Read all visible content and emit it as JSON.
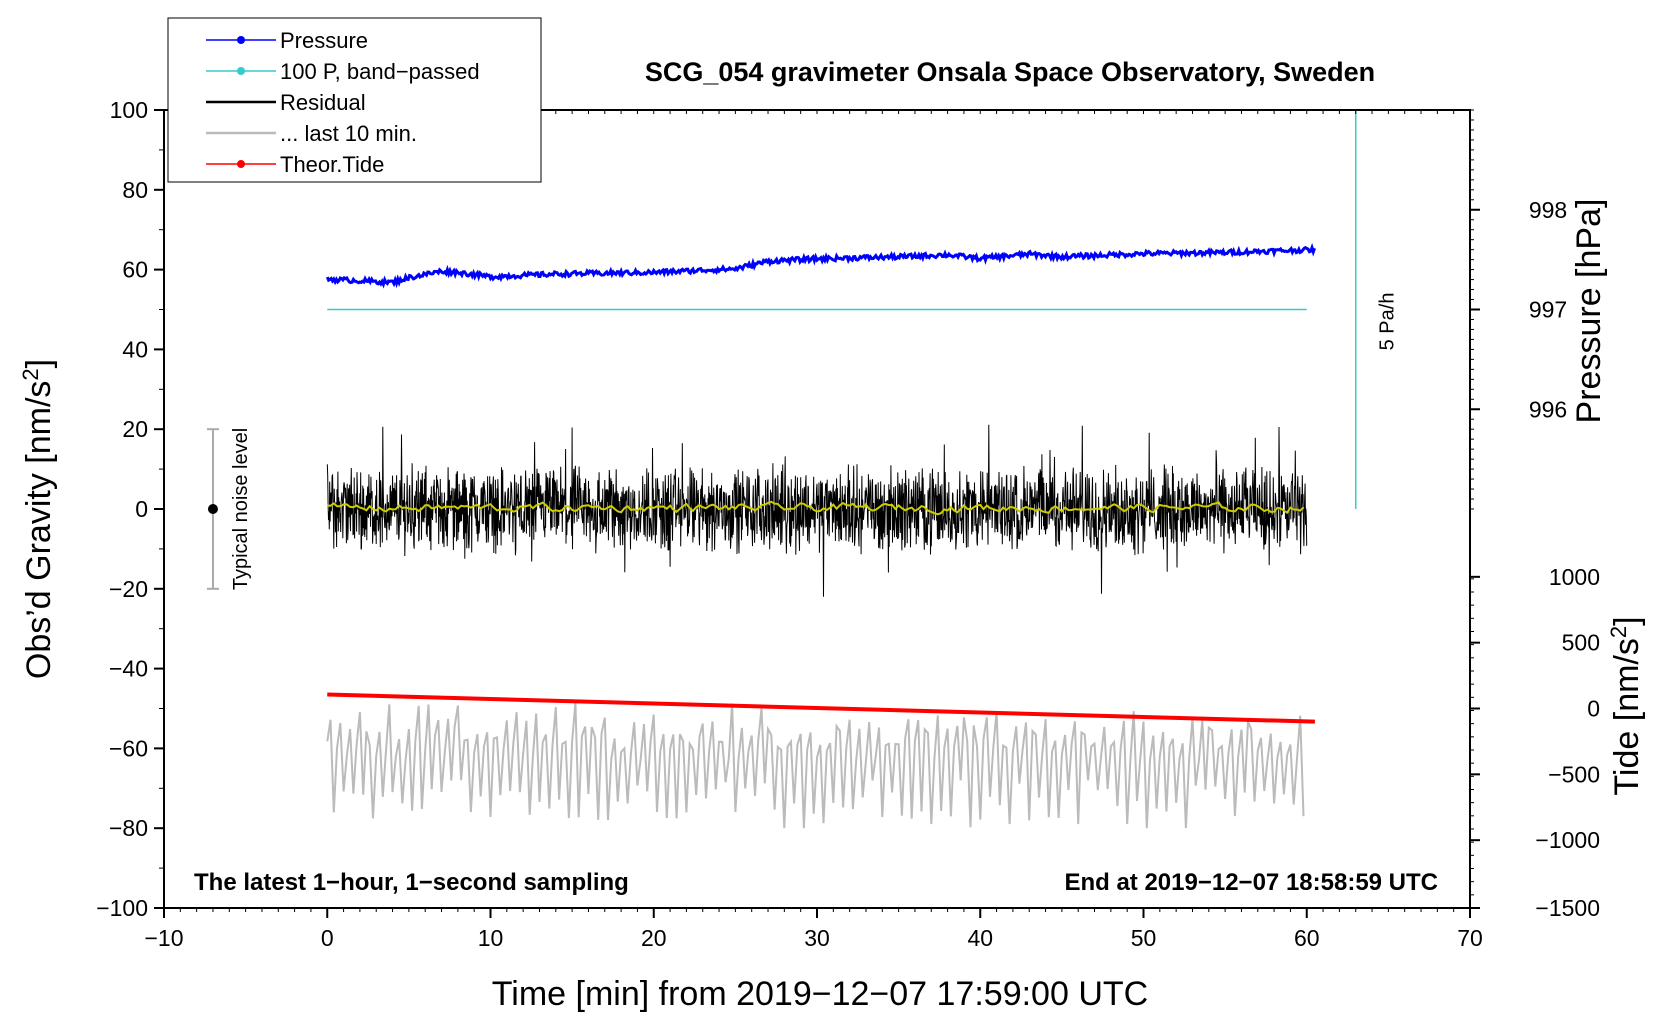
{
  "chart_data": {
    "type": "line",
    "title": "SCG_054 gravimeter Onsala Space Observatory, Sweden",
    "xlabel": "Time [min] from 2019−12−07 17:59:00 UTC",
    "ylabel_left": "Obs’d Gravity [nm/s²]",
    "ylabel_pressure": "Pressure [hPa]",
    "ylabel_tide": "Tide [nm/s²]",
    "xlim": [
      -10,
      70
    ],
    "ylim": [
      -100,
      100
    ],
    "x_ticks": [
      -10,
      0,
      10,
      20,
      30,
      40,
      50,
      60,
      70
    ],
    "x_tick_labels": [
      "−10",
      "0",
      "10",
      "20",
      "30",
      "40",
      "50",
      "60",
      "70"
    ],
    "y_ticks": [
      -100,
      -80,
      -60,
      -40,
      -20,
      0,
      20,
      40,
      60,
      80,
      100
    ],
    "y_tick_labels": [
      "−100",
      "−80",
      "−60",
      "−40",
      "−20",
      "0",
      "20",
      "40",
      "60",
      "80",
      "100"
    ],
    "pressure_axis": {
      "ticks": [
        996,
        997,
        998
      ],
      "tick_labels": [
        "996",
        "997",
        "998"
      ],
      "plot_y_at_ticks": [
        25,
        50,
        75
      ]
    },
    "tide_axis": {
      "ticks": [
        -1500,
        -1000,
        -500,
        0,
        500,
        1000
      ],
      "tick_labels": [
        "−1500",
        "−1000",
        "−500",
        "0",
        "500",
        "1000"
      ],
      "plot_y_at_ticks": [
        -100,
        -83,
        -66.5,
        -50,
        -33.5,
        -17
      ]
    },
    "legend": {
      "placement": "top-left",
      "entries": [
        {
          "label": "Pressure",
          "color": "#0000ff",
          "marker": true
        },
        {
          "label": "100 P, band−passed",
          "color": "#33cccc",
          "marker": true
        },
        {
          "label": "Residual",
          "color": "#000000",
          "marker": false
        },
        {
          "label": "... last 10 min.",
          "color": "#bbbbbb",
          "marker": false
        },
        {
          "label": "Theor.Tide",
          "color": "#ff0000",
          "marker": true
        }
      ]
    },
    "series": [
      {
        "name": "Pressure",
        "color": "#0000ff",
        "x": [
          0,
          2,
          4,
          5,
          7,
          8,
          10,
          14,
          20,
          25,
          27,
          30,
          35,
          38,
          40,
          43,
          45,
          50,
          55,
          60.5
        ],
        "y": [
          57.6,
          57.2,
          56.8,
          58.0,
          59.6,
          59.3,
          58.2,
          58.9,
          59.3,
          60.2,
          62.1,
          62.7,
          63.2,
          63.7,
          62.8,
          63.9,
          63.2,
          64.0,
          64.3,
          65.0
        ]
      },
      {
        "name": "100 P, band−passed",
        "color": "#33cccc",
        "x": [
          0,
          60
        ],
        "y": [
          50,
          50
        ]
      },
      {
        "name": "Residual",
        "color": "#000000",
        "x_range": [
          0,
          60
        ],
        "mean": 0,
        "range_typical": [
          -20,
          20
        ]
      },
      {
        "name": "Residual smoothed",
        "color": "#cccc00",
        "x_range": [
          0,
          60
        ],
        "mean": 0.3
      },
      {
        "name": "... last 10 min.",
        "color": "#bbbbbb",
        "x_range": [
          0,
          60
        ],
        "center": -63,
        "range": [
          -80,
          -45
        ]
      },
      {
        "name": "Theor.Tide",
        "color": "#ff0000",
        "x": [
          0,
          60.5
        ],
        "y": [
          -46.5,
          -53.3
        ]
      }
    ],
    "rate_marker": {
      "label": "5 Pa/h",
      "x": 63,
      "y_range": [
        0,
        100
      ],
      "color": "#33cccc"
    },
    "noise_level": {
      "label": "Typical noise level",
      "x": -7,
      "center": 0,
      "range": [
        -20,
        20
      ]
    },
    "annotation_left": "The latest 1−hour, 1−second sampling",
    "annotation_right": "End at 2019−12−07 18:58:59 UTC"
  }
}
